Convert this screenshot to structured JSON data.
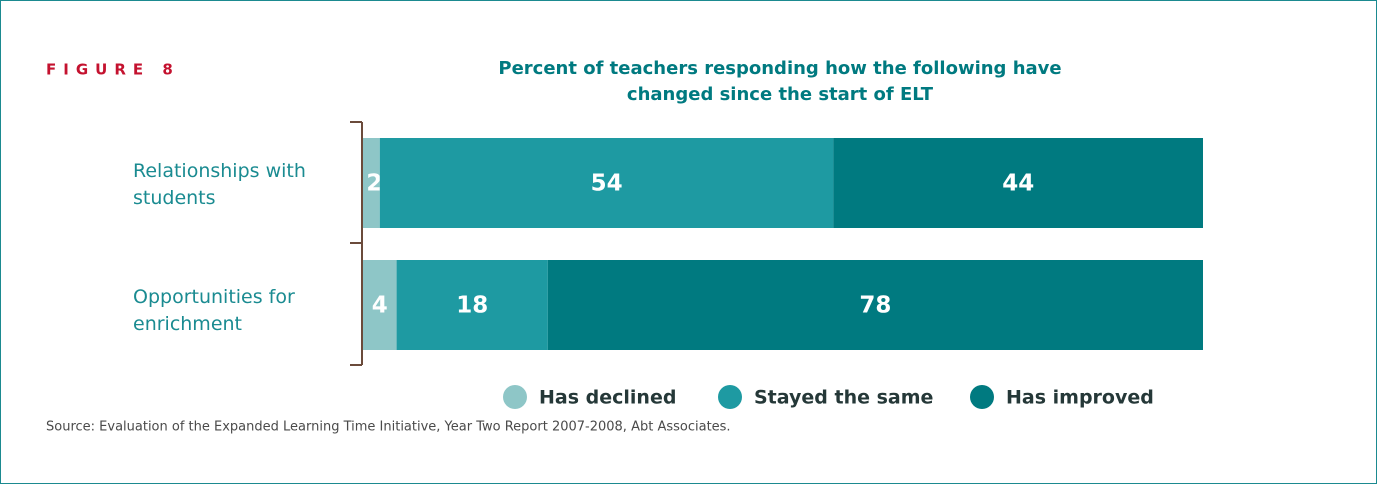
{
  "chart_data": {
    "type": "stacked_hbar",
    "figure_label": "FIGURE 8",
    "title": "Percent of teachers responding how the following have changed since the start of ELT",
    "categories": [
      "Relationships with students",
      "Opportunities for enrichment"
    ],
    "series": [
      {
        "name": "Has declined",
        "color": "#8ec6c7",
        "values": [
          2,
          4
        ]
      },
      {
        "name": "Stayed the same",
        "color": "#1e9aa2",
        "values": [
          54,
          18
        ]
      },
      {
        "name": "Has improved",
        "color": "#007a80",
        "values": [
          44,
          78
        ]
      }
    ],
    "xlim": [
      0,
      100
    ],
    "source": "Source:  Evaluation of the Expanded Learning Time Initiative, Year Two Report 2007-2008, Abt Associates."
  }
}
